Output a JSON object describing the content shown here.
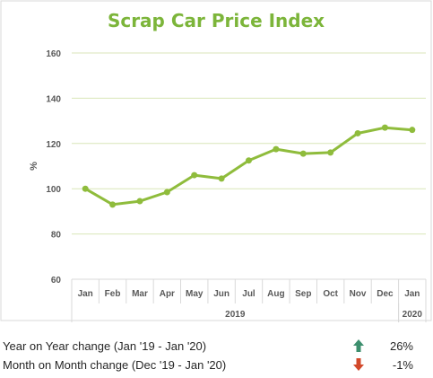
{
  "chart_data": {
    "type": "line",
    "title": "Scrap Car Price Index",
    "ylabel": "%",
    "ylim": [
      60,
      160
    ],
    "yticks": [
      60,
      80,
      100,
      120,
      140,
      160
    ],
    "grid": true,
    "categories": [
      "Jan",
      "Feb",
      "Mar",
      "Apr",
      "May",
      "Jun",
      "Jul",
      "Aug",
      "Sep",
      "Oct",
      "Nov",
      "Dec",
      "Jan"
    ],
    "year_groups": [
      {
        "label": "2019",
        "start": 0,
        "end": 11
      },
      {
        "label": "2020",
        "start": 12,
        "end": 12
      }
    ],
    "series": [
      {
        "values": [
          100,
          93,
          94.5,
          98.5,
          106,
          104.5,
          112.5,
          117.5,
          115.5,
          116,
          124.5,
          127,
          126
        ]
      }
    ]
  },
  "stats": [
    {
      "label": "Year on Year change (Jan '19 - Jan '20)",
      "direction": "up",
      "value": "26%"
    },
    {
      "label": "Month on Month change (Dec '19 - Jan '20)",
      "direction": "down",
      "value": "-1%"
    }
  ],
  "colors": {
    "title": "#7cb53a",
    "line": "#8fbc3c",
    "grid": "#d9e6b8",
    "axis_text": "#595959",
    "up_arrow": "#3d8f6e",
    "down_arrow": "#d2482a"
  },
  "icons": {
    "up": "up-arrow-icon",
    "down": "down-arrow-icon"
  }
}
